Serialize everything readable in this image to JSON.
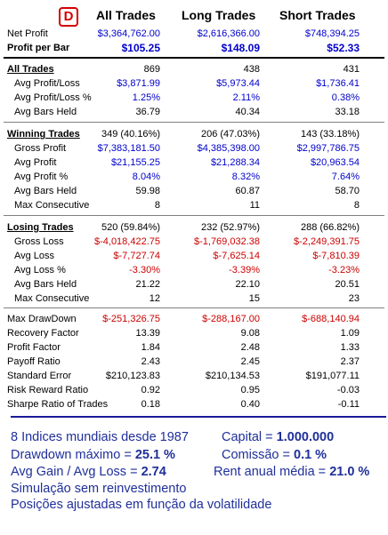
{
  "badge": "D",
  "headers": {
    "all": "All Trades",
    "long": "Long Trades",
    "short": "Short Trades"
  },
  "top": [
    {
      "label": "Net Profit",
      "all": "$3,364,762.00",
      "long": "$2,616,366.00",
      "short": "$748,394.25"
    },
    {
      "label": "Profit per Bar",
      "all": "$105.25",
      "long": "$148.09",
      "short": "$52.33"
    }
  ],
  "all_section": {
    "title": "All Trades",
    "title_values": {
      "all": "869",
      "long": "438",
      "short": "431"
    },
    "rows": [
      {
        "label": "Avg Profit/Loss",
        "all": "$3,871.99",
        "long": "$5,973.44",
        "short": "$1,736.41"
      },
      {
        "label": "Avg Profit/Loss %",
        "all": "1.25%",
        "long": "2.11%",
        "short": "0.38%"
      },
      {
        "label": "Avg Bars Held",
        "all": "36.79",
        "long": "40.34",
        "short": "33.18"
      }
    ]
  },
  "winning_section": {
    "title": "Winning Trades",
    "title_values": {
      "all": "349 (40.16%)",
      "long": "206 (47.03%)",
      "short": "143 (33.18%)"
    },
    "rows": [
      {
        "label": "Gross Profit",
        "all": "$7,383,181.50",
        "long": "$4,385,398.00",
        "short": "$2,997,786.75"
      },
      {
        "label": "Avg Profit",
        "all": "$21,155.25",
        "long": "$21,288.34",
        "short": "$20,963.54"
      },
      {
        "label": "Avg Profit %",
        "all": "8.04%",
        "long": "8.32%",
        "short": "7.64%"
      },
      {
        "label": "Avg Bars Held",
        "all": "59.98",
        "long": "60.87",
        "short": "58.70"
      },
      {
        "label": "Max Consecutive",
        "all": "8",
        "long": "11",
        "short": "8"
      }
    ]
  },
  "losing_section": {
    "title": "Losing Trades",
    "title_values": {
      "all": "520 (59.84%)",
      "long": "232 (52.97%)",
      "short": "288 (66.82%)"
    },
    "rows": [
      {
        "label": "Gross Loss",
        "all": "$-4,018,422.75",
        "long": "$-1,769,032.38",
        "short": "$-2,249,391.75"
      },
      {
        "label": "Avg Loss",
        "all": "$-7,727.74",
        "long": "$-7,625.14",
        "short": "$-7,810.39"
      },
      {
        "label": "Avg Loss %",
        "all": "-3.30%",
        "long": "-3.39%",
        "short": "-3.23%"
      },
      {
        "label": "Avg Bars Held",
        "all": "21.22",
        "long": "22.10",
        "short": "20.51"
      },
      {
        "label": "Max Consecutive",
        "all": "12",
        "long": "15",
        "short": "23"
      }
    ]
  },
  "stats": [
    {
      "label": "Max DrawDown",
      "all": "$-251,326.75",
      "long": "$-288,167.00",
      "short": "$-688,140.94"
    },
    {
      "label": "Recovery Factor",
      "all": "13.39",
      "long": "9.08",
      "short": "1.09"
    },
    {
      "label": "Profit Factor",
      "all": "1.84",
      "long": "2.48",
      "short": "1.33"
    },
    {
      "label": "Payoff Ratio",
      "all": "2.43",
      "long": "2.45",
      "short": "2.37"
    },
    {
      "label": "Standard Error",
      "all": "$210,123.83",
      "long": "$210,134.53",
      "short": "$191,077.11"
    },
    {
      "label": "Risk Reward Ratio",
      "all": "0.92",
      "long": "0.95",
      "short": "-0.03"
    },
    {
      "label": "Sharpe Ratio of Trades",
      "all": "0.18",
      "long": "0.40",
      "short": "-0.11"
    }
  ],
  "summary": {
    "line1_left": "8 Indices mundiais desde 1987",
    "capital_label": "Capital = ",
    "capital_value": "1.000.000",
    "drawdown_label": "Drawdown máximo = ",
    "drawdown_value": "25.1 %",
    "comissao_label": "Comissão = ",
    "comissao_value": "0.1 %",
    "avggain_label": "Avg Gain / Avg Loss = ",
    "avggain_value": "2.74",
    "rent_label": "Rent anual média = ",
    "rent_value": "21.0 %",
    "line4": "Simulação sem reinvestimento",
    "line5": "Posições ajustadas em função da volatilidade"
  },
  "colors": {
    "blue": "#0000cc",
    "red": "#cc0000",
    "summary": "#1f2f9a",
    "badge": "#d40000"
  }
}
